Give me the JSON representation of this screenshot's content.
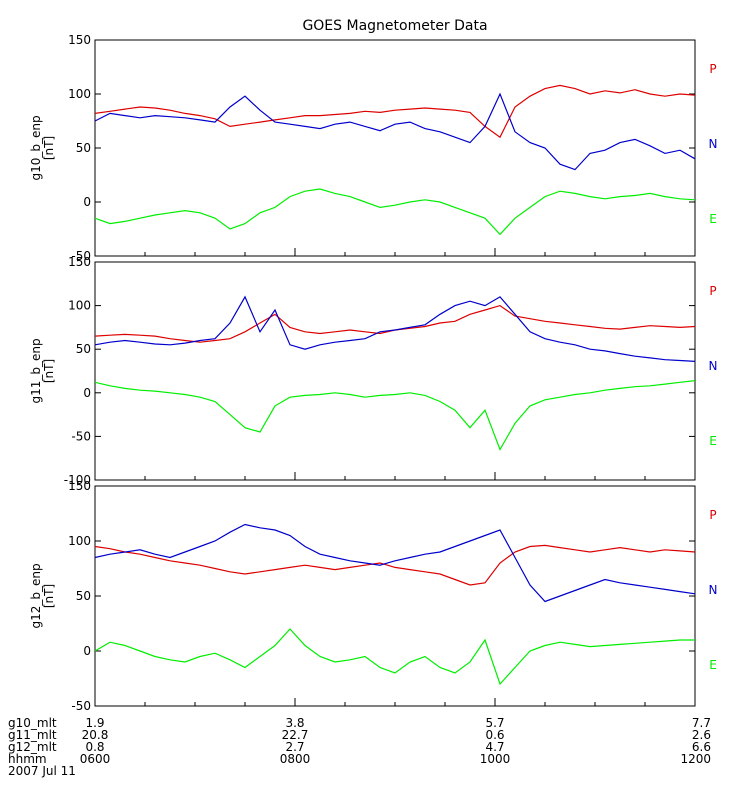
{
  "chart_data": {
    "type": "line",
    "title": "GOES Magnetometer Data",
    "panels": [
      {
        "ylabel": "g10_b_enp",
        "units": "[nT]",
        "ylim": [
          -50,
          150
        ],
        "yticks": [
          -50,
          0,
          50,
          100,
          150
        ],
        "series": [
          {
            "name": "P",
            "color": "#dd0000",
            "values": [
              82,
              84,
              86,
              88,
              87,
              85,
              82,
              80,
              77,
              70,
              72,
              74,
              76,
              78,
              80,
              80,
              81,
              82,
              84,
              83,
              85,
              86,
              87,
              86,
              85,
              83,
              70,
              60,
              88,
              98,
              105,
              108,
              105,
              100,
              103,
              101,
              104,
              100,
              98,
              100,
              99
            ]
          },
          {
            "name": "N",
            "color": "#0000cc",
            "values": [
              75,
              82,
              80,
              78,
              80,
              79,
              78,
              76,
              74,
              88,
              98,
              85,
              74,
              72,
              70,
              68,
              72,
              74,
              70,
              66,
              72,
              74,
              68,
              65,
              60,
              55,
              70,
              100,
              65,
              55,
              50,
              35,
              30,
              45,
              48,
              55,
              58,
              52,
              45,
              48,
              40
            ]
          },
          {
            "name": "E",
            "color": "#00ee00",
            "values": [
              -15,
              -20,
              -18,
              -15,
              -12,
              -10,
              -8,
              -10,
              -15,
              -25,
              -20,
              -10,
              -5,
              5,
              10,
              12,
              8,
              5,
              0,
              -5,
              -3,
              0,
              2,
              0,
              -5,
              -10,
              -15,
              -30,
              -15,
              -5,
              5,
              10,
              8,
              5,
              3,
              5,
              6,
              8,
              5,
              3,
              2
            ]
          }
        ]
      },
      {
        "ylabel": "g11_b_enp",
        "units": "[nT]",
        "ylim": [
          -100,
          150
        ],
        "yticks": [
          -100,
          -50,
          0,
          50,
          100,
          150
        ],
        "series": [
          {
            "name": "P",
            "color": "#dd0000",
            "values": [
              65,
              66,
              67,
              66,
              65,
              62,
              60,
              58,
              60,
              62,
              70,
              80,
              90,
              75,
              70,
              68,
              70,
              72,
              70,
              68,
              72,
              74,
              76,
              80,
              82,
              90,
              95,
              100,
              88,
              85,
              82,
              80,
              78,
              76,
              74,
              73,
              75,
              77,
              76,
              75,
              76
            ]
          },
          {
            "name": "N",
            "color": "#0000cc",
            "values": [
              55,
              58,
              60,
              58,
              56,
              55,
              57,
              60,
              62,
              80,
              110,
              70,
              95,
              55,
              50,
              55,
              58,
              60,
              62,
              70,
              72,
              75,
              78,
              90,
              100,
              105,
              100,
              110,
              90,
              70,
              62,
              58,
              55,
              50,
              48,
              45,
              42,
              40,
              38,
              37,
              36
            ]
          },
          {
            "name": "E",
            "color": "#00ee00",
            "values": [
              12,
              8,
              5,
              3,
              2,
              0,
              -2,
              -5,
              -10,
              -25,
              -40,
              -45,
              -15,
              -5,
              -3,
              -2,
              0,
              -2,
              -5,
              -3,
              -2,
              0,
              -3,
              -10,
              -20,
              -40,
              -20,
              -65,
              -35,
              -15,
              -8,
              -5,
              -2,
              0,
              3,
              5,
              7,
              8,
              10,
              12,
              14
            ]
          }
        ]
      },
      {
        "ylabel": "g12_b_enp",
        "units": "[nT]",
        "ylim": [
          -50,
          150
        ],
        "yticks": [
          -50,
          0,
          50,
          100,
          150
        ],
        "series": [
          {
            "name": "P",
            "color": "#dd0000",
            "values": [
              95,
              93,
              90,
              88,
              85,
              82,
              80,
              78,
              75,
              72,
              70,
              72,
              74,
              76,
              78,
              76,
              74,
              76,
              78,
              80,
              76,
              74,
              72,
              70,
              65,
              60,
              62,
              80,
              90,
              95,
              96,
              94,
              92,
              90,
              92,
              94,
              92,
              90,
              92,
              91,
              90
            ]
          },
          {
            "name": "N",
            "color": "#0000cc",
            "values": [
              85,
              88,
              90,
              92,
              88,
              85,
              90,
              95,
              100,
              108,
              115,
              112,
              110,
              105,
              95,
              88,
              85,
              82,
              80,
              78,
              82,
              85,
              88,
              90,
              95,
              100,
              105,
              110,
              85,
              60,
              45,
              50,
              55,
              60,
              65,
              62,
              60,
              58,
              56,
              54,
              52
            ]
          },
          {
            "name": "E",
            "color": "#00ee00",
            "values": [
              0,
              8,
              5,
              0,
              -5,
              -8,
              -10,
              -5,
              -2,
              -8,
              -15,
              -5,
              5,
              20,
              5,
              -5,
              -10,
              -8,
              -5,
              -15,
              -20,
              -10,
              -5,
              -15,
              -20,
              -10,
              10,
              -30,
              -15,
              0,
              5,
              8,
              6,
              4,
              5,
              6,
              7,
              8,
              9,
              10,
              10
            ]
          }
        ]
      }
    ],
    "x_ticks": [
      "0600",
      "0800",
      "1000",
      "1200"
    ],
    "footer_rows": [
      {
        "label": "g10_mlt",
        "values": [
          "1.9",
          "3.8",
          "5.7",
          "7.7"
        ]
      },
      {
        "label": "g11_mlt",
        "values": [
          "20.8",
          "22.7",
          "0.6",
          "2.6"
        ]
      },
      {
        "label": "g12_mlt",
        "values": [
          "0.8",
          "2.7",
          "4.7",
          "6.6"
        ]
      },
      {
        "label": "hhmm",
        "values": [
          "0600",
          "0800",
          "1000",
          "1200"
        ]
      }
    ],
    "date": "2007 Jul 11"
  }
}
